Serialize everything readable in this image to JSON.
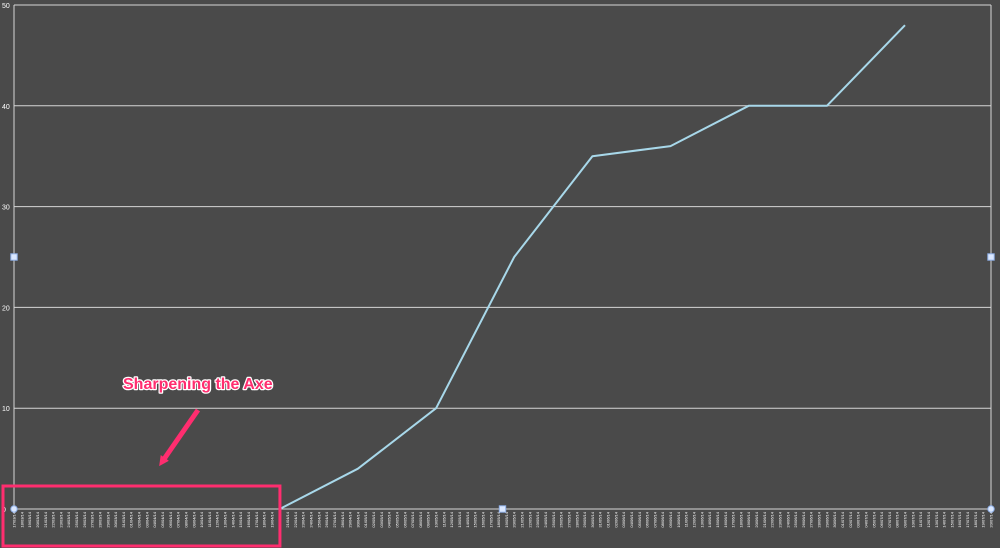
{
  "chart_data": {
    "type": "line",
    "title": "",
    "xlabel": "",
    "ylabel": "",
    "ylim": [
      0,
      50
    ],
    "yticks": [
      0,
      10,
      20,
      30,
      40,
      50
    ],
    "grid": "horizontal",
    "x": [
      "17/03/14",
      "18/03/14",
      "19/03/14",
      "20/03/14",
      "21/03/14",
      "22/03/14",
      "23/03/14",
      "24/03/14",
      "25/03/14",
      "26/03/14",
      "27/03/14",
      "28/03/14",
      "29/03/14",
      "30/03/14",
      "31/03/14",
      "01/04/14",
      "02/04/14",
      "03/04/14",
      "04/04/14",
      "05/04/14",
      "06/04/14",
      "07/04/14",
      "08/04/14",
      "09/04/14",
      "10/04/14",
      "11/04/14",
      "12/04/14",
      "13/04/14",
      "14/04/14",
      "15/04/14",
      "16/04/14",
      "17/04/14",
      "18/04/14",
      "19/04/14",
      "20/04/14",
      "21/04/14",
      "22/04/14",
      "23/04/14",
      "24/04/14",
      "25/04/14",
      "26/04/14",
      "27/04/14",
      "28/04/14",
      "29/04/14",
      "30/04/14",
      "01/05/14",
      "02/05/14",
      "03/05/14",
      "04/05/14",
      "05/05/14",
      "06/05/14",
      "07/05/14",
      "08/05/14",
      "09/05/14",
      "10/05/14",
      "11/05/14",
      "12/05/14",
      "13/05/14",
      "14/05/14",
      "15/05/14",
      "16/05/14",
      "17/05/14",
      "18/05/14",
      "19/05/14",
      "20/05/14",
      "21/05/14",
      "22/05/14",
      "23/05/14",
      "24/05/14",
      "25/05/14",
      "26/05/14",
      "27/05/14",
      "28/05/14",
      "29/05/14",
      "30/05/14",
      "31/05/14",
      "01/06/14",
      "02/06/14",
      "03/06/14",
      "04/06/14",
      "05/06/14",
      "06/06/14",
      "07/06/14",
      "08/06/14",
      "09/06/14",
      "10/06/14",
      "11/06/14",
      "12/06/14",
      "13/06/14",
      "14/06/14",
      "15/06/14",
      "16/06/14",
      "17/06/14",
      "18/06/14",
      "19/06/14",
      "20/06/14",
      "21/06/14",
      "22/06/14",
      "23/06/14",
      "24/06/14",
      "25/06/14",
      "26/06/14",
      "27/06/14",
      "28/06/14",
      "29/06/14",
      "30/06/14",
      "01/07/14",
      "02/07/14",
      "03/07/14",
      "04/07/14",
      "05/07/14",
      "06/07/14",
      "07/07/14",
      "08/07/14",
      "09/07/14",
      "10/07/14",
      "11/07/14",
      "12/07/14",
      "13/07/14",
      "14/07/14",
      "15/07/14",
      "16/07/14",
      "17/07/14",
      "18/07/14",
      "19/07/14",
      "20/07/14"
    ],
    "series": [
      {
        "name": "",
        "color": "#a8d8ea",
        "points": [
          {
            "x": "20/04/14",
            "y": 0
          },
          {
            "x": "30/04/14",
            "y": 4
          },
          {
            "x": "10/05/14",
            "y": 10
          },
          {
            "x": "20/05/14",
            "y": 25
          },
          {
            "x": "30/05/14",
            "y": 35
          },
          {
            "x": "09/06/14",
            "y": 36
          },
          {
            "x": "19/06/14",
            "y": 40
          },
          {
            "x": "29/06/14",
            "y": 40
          },
          {
            "x": "09/07/14",
            "y": 48
          }
        ]
      }
    ],
    "annotations": [
      {
        "text": "Sharpening the Axe",
        "color": "#ff2d6f",
        "from_x": "17/03/14",
        "to_x": "19/04/14"
      }
    ]
  }
}
